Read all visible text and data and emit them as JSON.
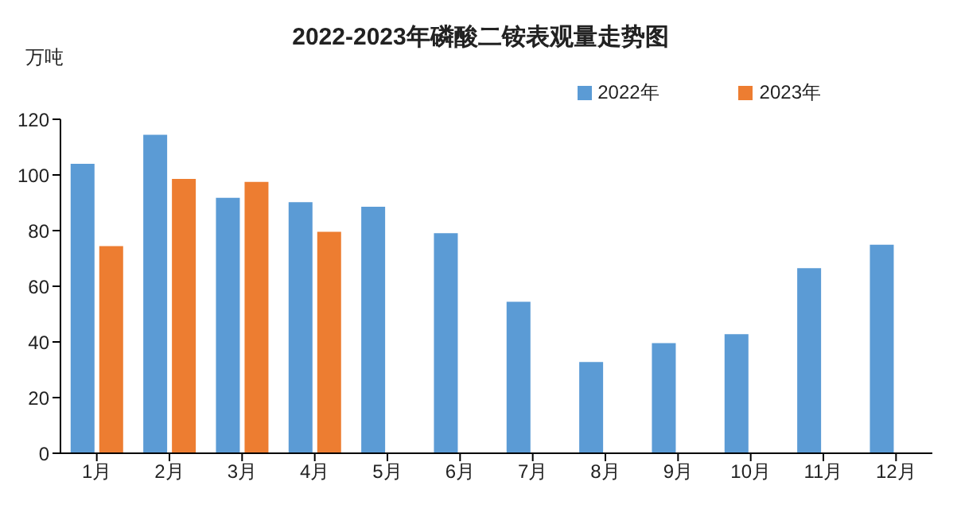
{
  "chart_data": {
    "type": "bar",
    "title": "2022-2023年磷酸二铵表观量走势图",
    "ylabel": "万吨",
    "categories": [
      "1月",
      "2月",
      "3月",
      "4月",
      "5月",
      "6月",
      "7月",
      "8月",
      "9月",
      "10月",
      "11月",
      "12月"
    ],
    "series": [
      {
        "name": "2022年",
        "color": "#5b9bd5",
        "values": [
          104,
          114.4,
          91.8,
          90.2,
          88.6,
          79.1,
          54.4,
          32.8,
          39.6,
          42.8,
          66.5,
          74.9
        ]
      },
      {
        "name": "2023年",
        "color": "#ed7d31",
        "values": [
          74.4,
          98.6,
          97.5,
          79.6,
          null,
          null,
          null,
          null,
          null,
          null,
          null,
          null
        ]
      }
    ],
    "ylim": [
      0,
      120
    ],
    "yticks": [
      0,
      20,
      40,
      60,
      80,
      100,
      120
    ],
    "grid": false,
    "legend": "top right"
  }
}
